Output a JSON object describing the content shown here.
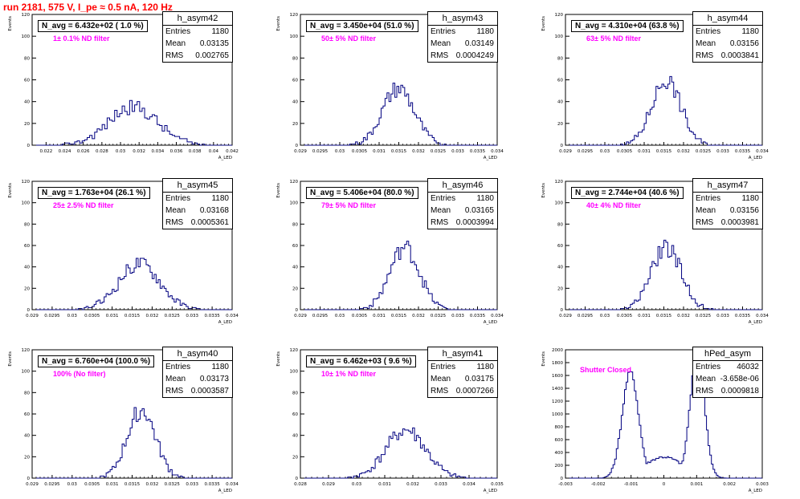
{
  "title": "run 2181,   575 V, I_pe ≈ 0.5 nA, 120 Hz",
  "colors": {
    "title": "#ff0000",
    "histogram": "#000080",
    "annotation": "#ff00ff"
  },
  "stat_labels": {
    "entries": "Entries",
    "mean": "Mean",
    "rms": "RMS"
  },
  "chart_data": [
    {
      "type": "histogram",
      "name": "h_asym42",
      "navg": "N_avg = 6.432e+02 ( 1.0 %)",
      "filter": "1± 0.1% ND filter",
      "ylabel": "Events",
      "xlabel": "A_LED",
      "xlim": [
        0.0205,
        0.042
      ],
      "ylim": [
        0,
        120
      ],
      "xticks": [
        0.022,
        0.024,
        0.026,
        0.028,
        0.03,
        0.032,
        0.034,
        0.036,
        0.038,
        0.04,
        0.042
      ],
      "xtick_labels": [
        "0.022",
        "0.024",
        "0.026",
        "0.028",
        "0.03",
        "0.032",
        "0.034",
        "0.036",
        "0.038",
        "0.04",
        "0.042"
      ],
      "yticks": [
        0,
        20,
        40,
        60,
        80,
        100,
        120
      ],
      "stats": {
        "entries": "1180",
        "mean": "0.03135",
        "rms": "0.002765"
      },
      "dist": {
        "kind": "gauss",
        "mean": 0.03135,
        "sigma": 0.00265,
        "peak": 35,
        "seed": 42,
        "bins": 80
      }
    },
    {
      "type": "histogram",
      "name": "h_asym43",
      "navg": "N_avg = 3.450e+04 (51.0 %)",
      "filter": "50± 5% ND filter",
      "ylabel": "Events",
      "xlabel": "A_LED",
      "xlim": [
        0.029,
        0.034
      ],
      "ylim": [
        0,
        120
      ],
      "xticks": [
        0.029,
        0.0295,
        0.03,
        0.0305,
        0.031,
        0.0315,
        0.032,
        0.0325,
        0.033,
        0.0335,
        0.034
      ],
      "xtick_labels": [
        "0.029",
        "0.0295",
        "0.03",
        "0.0305",
        "0.031",
        "0.0315",
        "0.032",
        "0.0325",
        "0.033",
        "0.0335",
        "0.034"
      ],
      "yticks": [
        0,
        20,
        40,
        60,
        80,
        100,
        120
      ],
      "stats": {
        "entries": "1180",
        "mean": "0.03149",
        "rms": "0.0004249"
      },
      "dist": {
        "kind": "gauss",
        "mean": 0.03149,
        "sigma": 0.000405,
        "peak": 52,
        "seed": 43,
        "bins": 100
      }
    },
    {
      "type": "histogram",
      "name": "h_asym44",
      "navg": "N_avg = 4.310e+04 (63.8 %)",
      "filter": "63± 5% ND filter",
      "ylabel": "Events",
      "xlabel": "A_LED",
      "xlim": [
        0.029,
        0.034
      ],
      "ylim": [
        0,
        120
      ],
      "xticks": [
        0.029,
        0.0295,
        0.03,
        0.0305,
        0.031,
        0.0315,
        0.032,
        0.0325,
        0.033,
        0.0335,
        0.034
      ],
      "xtick_labels": [
        "0.029",
        "0.0295",
        "0.03",
        "0.0305",
        "0.031",
        "0.0315",
        "0.032",
        "0.0325",
        "0.033",
        "0.0335",
        "0.034"
      ],
      "yticks": [
        0,
        20,
        40,
        60,
        80,
        100,
        120
      ],
      "stats": {
        "entries": "1180",
        "mean": "0.03156",
        "rms": "0.0003841"
      },
      "dist": {
        "kind": "gauss",
        "mean": 0.03156,
        "sigma": 0.00037,
        "peak": 60,
        "seed": 44,
        "bins": 100
      }
    },
    {
      "type": "histogram",
      "name": "h_asym45",
      "navg": "N_avg = 1.763e+04 (26.1 %)",
      "filter": "25± 2.5% ND filter",
      "ylabel": "Events",
      "xlabel": "A_LED",
      "xlim": [
        0.029,
        0.034
      ],
      "ylim": [
        0,
        120
      ],
      "xticks": [
        0.029,
        0.0295,
        0.03,
        0.0305,
        0.031,
        0.0315,
        0.032,
        0.0325,
        0.033,
        0.0335,
        0.034
      ],
      "xtick_labels": [
        "0.029",
        "0.0295",
        "0.03",
        "0.0305",
        "0.031",
        "0.0315",
        "0.032",
        "0.0325",
        "0.033",
        "0.0335",
        "0.034"
      ],
      "yticks": [
        0,
        20,
        40,
        60,
        80,
        100,
        120
      ],
      "stats": {
        "entries": "1180",
        "mean": "0.03168",
        "rms": "0.0005361"
      },
      "dist": {
        "kind": "gauss",
        "mean": 0.03168,
        "sigma": 0.00051,
        "peak": 43,
        "seed": 45,
        "bins": 100
      }
    },
    {
      "type": "histogram",
      "name": "h_asym46",
      "navg": "N_avg = 5.406e+04 (80.0 %)",
      "filter": "79± 5% ND filter",
      "ylabel": "Events",
      "xlabel": "A_LED",
      "xlim": [
        0.029,
        0.034
      ],
      "ylim": [
        0,
        120
      ],
      "xticks": [
        0.029,
        0.0295,
        0.03,
        0.0305,
        0.031,
        0.0315,
        0.032,
        0.0325,
        0.033,
        0.0335,
        0.034
      ],
      "xtick_labels": [
        "0.029",
        "0.0295",
        "0.03",
        "0.0305",
        "0.031",
        "0.0315",
        "0.032",
        "0.0325",
        "0.033",
        "0.0335",
        "0.034"
      ],
      "yticks": [
        0,
        20,
        40,
        60,
        80,
        100,
        120
      ],
      "stats": {
        "entries": "1180",
        "mean": "0.03165",
        "rms": "0.0003994"
      },
      "dist": {
        "kind": "gauss",
        "mean": 0.03165,
        "sigma": 0.00038,
        "peak": 58,
        "seed": 46,
        "bins": 100
      }
    },
    {
      "type": "histogram",
      "name": "h_asym47",
      "navg": "N_avg = 2.744e+04 (40.6 %)",
      "filter": "40± 4% ND filter",
      "ylabel": "Events",
      "xlabel": "A_LED",
      "xlim": [
        0.029,
        0.034
      ],
      "ylim": [
        0,
        120
      ],
      "xticks": [
        0.029,
        0.0295,
        0.03,
        0.0305,
        0.031,
        0.0315,
        0.032,
        0.0325,
        0.033,
        0.0335,
        0.034
      ],
      "xtick_labels": [
        "0.029",
        "0.0295",
        "0.03",
        "0.0305",
        "0.031",
        "0.0315",
        "0.032",
        "0.0325",
        "0.033",
        "0.0335",
        "0.034"
      ],
      "yticks": [
        0,
        20,
        40,
        60,
        80,
        100,
        120
      ],
      "stats": {
        "entries": "1180",
        "mean": "0.03156",
        "rms": "0.0003981"
      },
      "dist": {
        "kind": "gauss",
        "mean": 0.03156,
        "sigma": 0.00038,
        "peak": 58,
        "seed": 47,
        "bins": 100
      }
    },
    {
      "type": "histogram",
      "name": "h_asym40",
      "navg": "N_avg = 6.760e+04 (100.0 %)",
      "filter": "100% (No filter)",
      "ylabel": "Events",
      "xlabel": "A_LED",
      "xlim": [
        0.029,
        0.034
      ],
      "ylim": [
        0,
        120
      ],
      "xticks": [
        0.029,
        0.0295,
        0.03,
        0.0305,
        0.031,
        0.0315,
        0.032,
        0.0325,
        0.033,
        0.0335,
        0.034
      ],
      "xtick_labels": [
        "0.029",
        "0.0295",
        "0.03",
        "0.0305",
        "0.031",
        "0.0315",
        "0.032",
        "0.0325",
        "0.033",
        "0.0335",
        "0.034"
      ],
      "yticks": [
        0,
        20,
        40,
        60,
        80,
        100,
        120
      ],
      "stats": {
        "entries": "1180",
        "mean": "0.03173",
        "rms": "0.0003587"
      },
      "dist": {
        "kind": "gauss",
        "mean": 0.03173,
        "sigma": 0.00035,
        "peak": 64,
        "seed": 40,
        "bins": 100
      }
    },
    {
      "type": "histogram",
      "name": "h_asym41",
      "navg": "N_avg = 6.462e+03 ( 9.6 %)",
      "filter": "10± 1% ND filter",
      "ylabel": "Events",
      "xlabel": "A_LED",
      "xlim": [
        0.028,
        0.035
      ],
      "ylim": [
        0,
        120
      ],
      "xticks": [
        0.028,
        0.029,
        0.03,
        0.031,
        0.032,
        0.033,
        0.034,
        0.035
      ],
      "xtick_labels": [
        "0.028",
        "0.029",
        "0.03",
        "0.031",
        "0.032",
        "0.033",
        "0.034",
        "0.035"
      ],
      "yticks": [
        0,
        20,
        40,
        60,
        80,
        100,
        120
      ],
      "stats": {
        "entries": "1180",
        "mean": "0.03175",
        "rms": "0.0007266"
      },
      "dist": {
        "kind": "gauss",
        "mean": 0.03175,
        "sigma": 0.0007,
        "peak": 45,
        "seed": 41,
        "bins": 100
      }
    },
    {
      "type": "histogram",
      "name": "hPed_asym",
      "navg": "",
      "filter": "Shutter Closed",
      "ylabel": "Events",
      "xlabel": "A_LED",
      "xlim": [
        -0.003,
        0.003
      ],
      "ylim": [
        0,
        2000
      ],
      "xticks": [
        -0.003,
        -0.002,
        -0.001,
        0,
        0.001,
        0.002,
        0.003
      ],
      "xtick_labels": [
        "-0.003",
        "-0.002",
        "-0.001",
        "0",
        "0.001",
        "0.002",
        "0.003"
      ],
      "yticks": [
        0,
        200,
        400,
        600,
        800,
        1000,
        1200,
        1400,
        1600,
        1800,
        2000
      ],
      "stats": {
        "entries": "46032",
        "mean": "-3.658e-06",
        "rms": "0.0009818"
      },
      "dist": {
        "kind": "bimodal",
        "m1": -0.00102,
        "s1": 0.00025,
        "p1": 1650,
        "m2": 0.00102,
        "s2": 0.00022,
        "p2": 1950,
        "floor": 330,
        "seed": 48,
        "bins": 120
      }
    }
  ]
}
